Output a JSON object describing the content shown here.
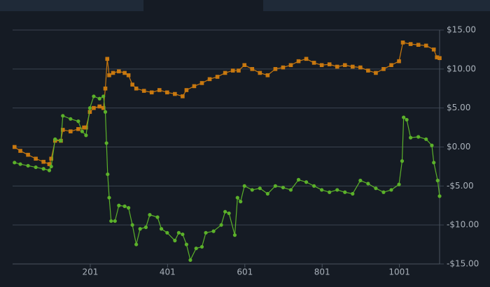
{
  "chart_data": {
    "type": "line",
    "xlim": [
      0,
      1105
    ],
    "xticks": [
      201,
      401,
      601,
      801,
      1001
    ],
    "ylim": [
      -15,
      15
    ],
    "yticks": [
      {
        "value": -15,
        "label": "-$15.00"
      },
      {
        "value": -10,
        "label": "-$10.00"
      },
      {
        "value": -5,
        "label": "-$5.00"
      },
      {
        "value": 0,
        "label": "$0.00"
      },
      {
        "value": 5,
        "label": "$5.00"
      },
      {
        "value": 10,
        "label": "$10.00"
      },
      {
        "value": 15,
        "label": "$15.00"
      }
    ],
    "grid": true,
    "series": [
      {
        "color": "#c8780f",
        "marker": "square",
        "x": [
          5,
          20,
          40,
          60,
          80,
          95,
          100,
          110,
          125,
          130,
          150,
          170,
          185,
          190,
          200,
          210,
          225,
          235,
          240,
          245,
          250,
          260,
          275,
          290,
          300,
          310,
          320,
          340,
          360,
          380,
          400,
          420,
          440,
          450,
          470,
          490,
          510,
          530,
          550,
          570,
          585,
          600,
          620,
          640,
          660,
          680,
          700,
          720,
          740,
          760,
          780,
          800,
          820,
          840,
          860,
          880,
          900,
          920,
          940,
          960,
          980,
          1000,
          1010,
          1030,
          1050,
          1070,
          1090,
          1098,
          1105
        ],
        "values": [
          0,
          -0.5,
          -1,
          -1.5,
          -1.9,
          -2.2,
          -1.5,
          0.8,
          0.8,
          2.2,
          2.0,
          2.3,
          2.5,
          2.5,
          4.5,
          5.0,
          5.2,
          5.0,
          7.5,
          11.3,
          9.2,
          9.5,
          9.7,
          9.5,
          9.2,
          8.0,
          7.5,
          7.2,
          7.0,
          7.3,
          7.0,
          6.8,
          6.5,
          7.3,
          7.8,
          8.2,
          8.7,
          9.0,
          9.5,
          9.8,
          9.8,
          10.5,
          10.0,
          9.5,
          9.2,
          10.0,
          10.2,
          10.5,
          11.0,
          11.3,
          10.8,
          10.5,
          10.6,
          10.3,
          10.5,
          10.3,
          10.2,
          9.8,
          9.5,
          10.0,
          10.5,
          11.0,
          13.4,
          13.2,
          13.1,
          13.0,
          12.5,
          11.5,
          11.4
        ]
      },
      {
        "color": "#5bb12a",
        "marker": "circle",
        "x": [
          5,
          20,
          40,
          60,
          80,
          95,
          100,
          110,
          125,
          130,
          150,
          170,
          180,
          190,
          200,
          210,
          225,
          235,
          240,
          243,
          246,
          250,
          255,
          265,
          275,
          290,
          300,
          310,
          320,
          330,
          345,
          355,
          375,
          385,
          400,
          420,
          430,
          440,
          450,
          460,
          475,
          490,
          500,
          520,
          540,
          550,
          560,
          575,
          582,
          590,
          600,
          620,
          640,
          660,
          680,
          700,
          720,
          740,
          760,
          780,
          800,
          820,
          840,
          860,
          880,
          900,
          920,
          940,
          960,
          980,
          1000,
          1008,
          1012,
          1020,
          1030,
          1050,
          1070,
          1085,
          1090,
          1100,
          1105
        ],
        "values": [
          -2,
          -2.2,
          -2.4,
          -2.6,
          -2.8,
          -3.0,
          -2.5,
          1.0,
          0.8,
          4.0,
          3.6,
          3.3,
          2.0,
          1.5,
          5.0,
          6.5,
          6.2,
          6.5,
          4.5,
          0.5,
          -3.5,
          -6.5,
          -9.5,
          -9.5,
          -7.5,
          -7.6,
          -7.8,
          -10,
          -12.5,
          -10.5,
          -10.3,
          -8.7,
          -9.0,
          -10.5,
          -11.0,
          -12.0,
          -11.0,
          -11.2,
          -12.5,
          -14.5,
          -13.0,
          -12.8,
          -11.0,
          -10.8,
          -10.0,
          -8.3,
          -8.5,
          -11.3,
          -6.5,
          -7,
          -5.0,
          -5.5,
          -5.3,
          -6.0,
          -5.0,
          -5.2,
          -5.5,
          -4.2,
          -4.5,
          -5.0,
          -5.5,
          -5.8,
          -5.5,
          -5.8,
          -6.0,
          -4.3,
          -4.7,
          -5.3,
          -5.8,
          -5.5,
          -4.8,
          -1.8,
          3.8,
          3.5,
          1.2,
          1.3,
          1.0,
          0.2,
          -2.0,
          -4.3,
          -6.3
        ]
      }
    ]
  }
}
